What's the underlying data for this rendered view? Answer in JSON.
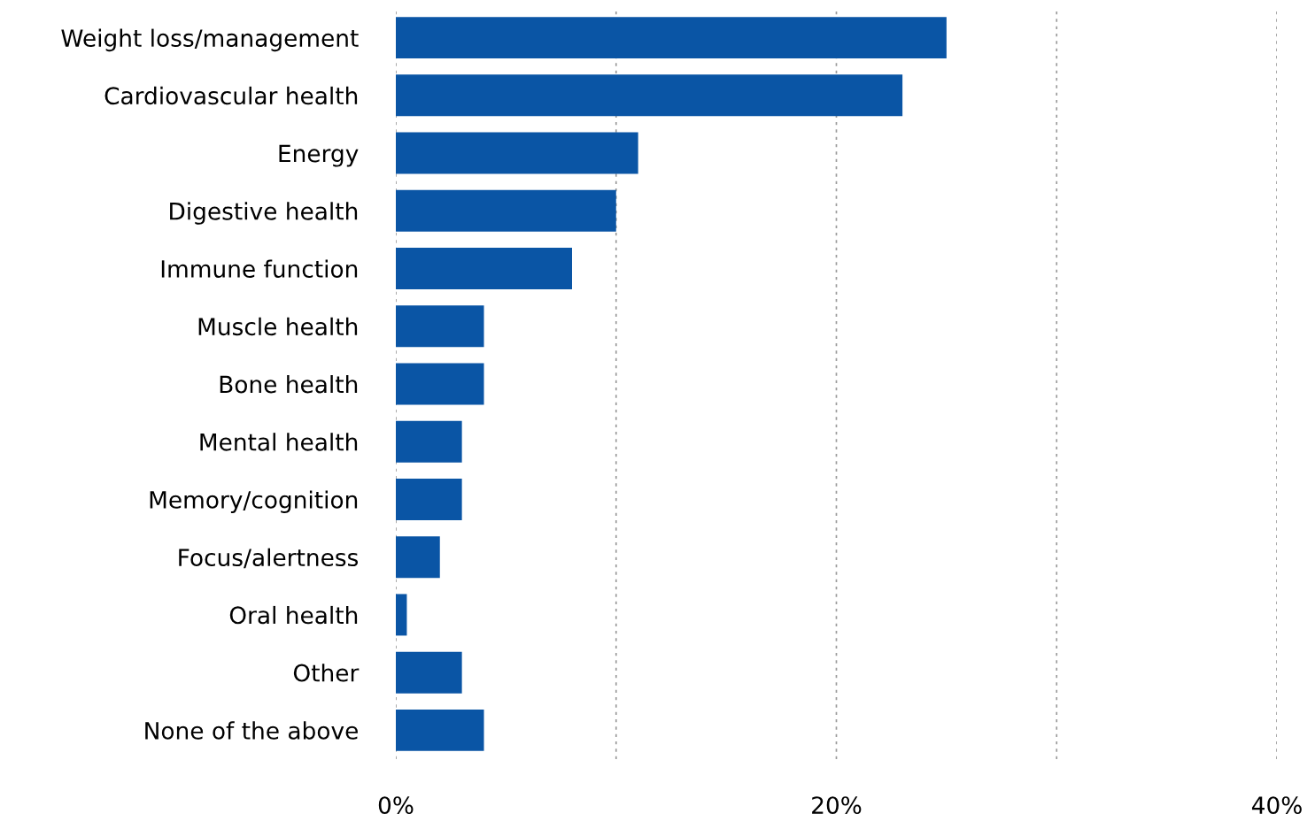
{
  "chart_data": {
    "type": "bar",
    "orientation": "horizontal",
    "categories": [
      "Weight loss/management",
      "Cardiovascular health",
      "Energy",
      "Digestive health",
      "Immune function",
      "Muscle health",
      "Bone health",
      "Mental health",
      "Memory/cognition",
      "Focus/alertness",
      "Oral health",
      "Other",
      "None of the above"
    ],
    "values": [
      25,
      23,
      11,
      10,
      8,
      4,
      4,
      3,
      3,
      2,
      0.5,
      3,
      4
    ],
    "color": "#0a55a5",
    "xlim": [
      0,
      40
    ],
    "xticks": [
      {
        "value": 0,
        "label": "0%"
      },
      {
        "value": 10,
        "label": null
      },
      {
        "value": 20,
        "label": "20%"
      },
      {
        "value": 30,
        "label": null
      },
      {
        "value": 40,
        "label": "40%"
      }
    ],
    "grid": "x"
  }
}
